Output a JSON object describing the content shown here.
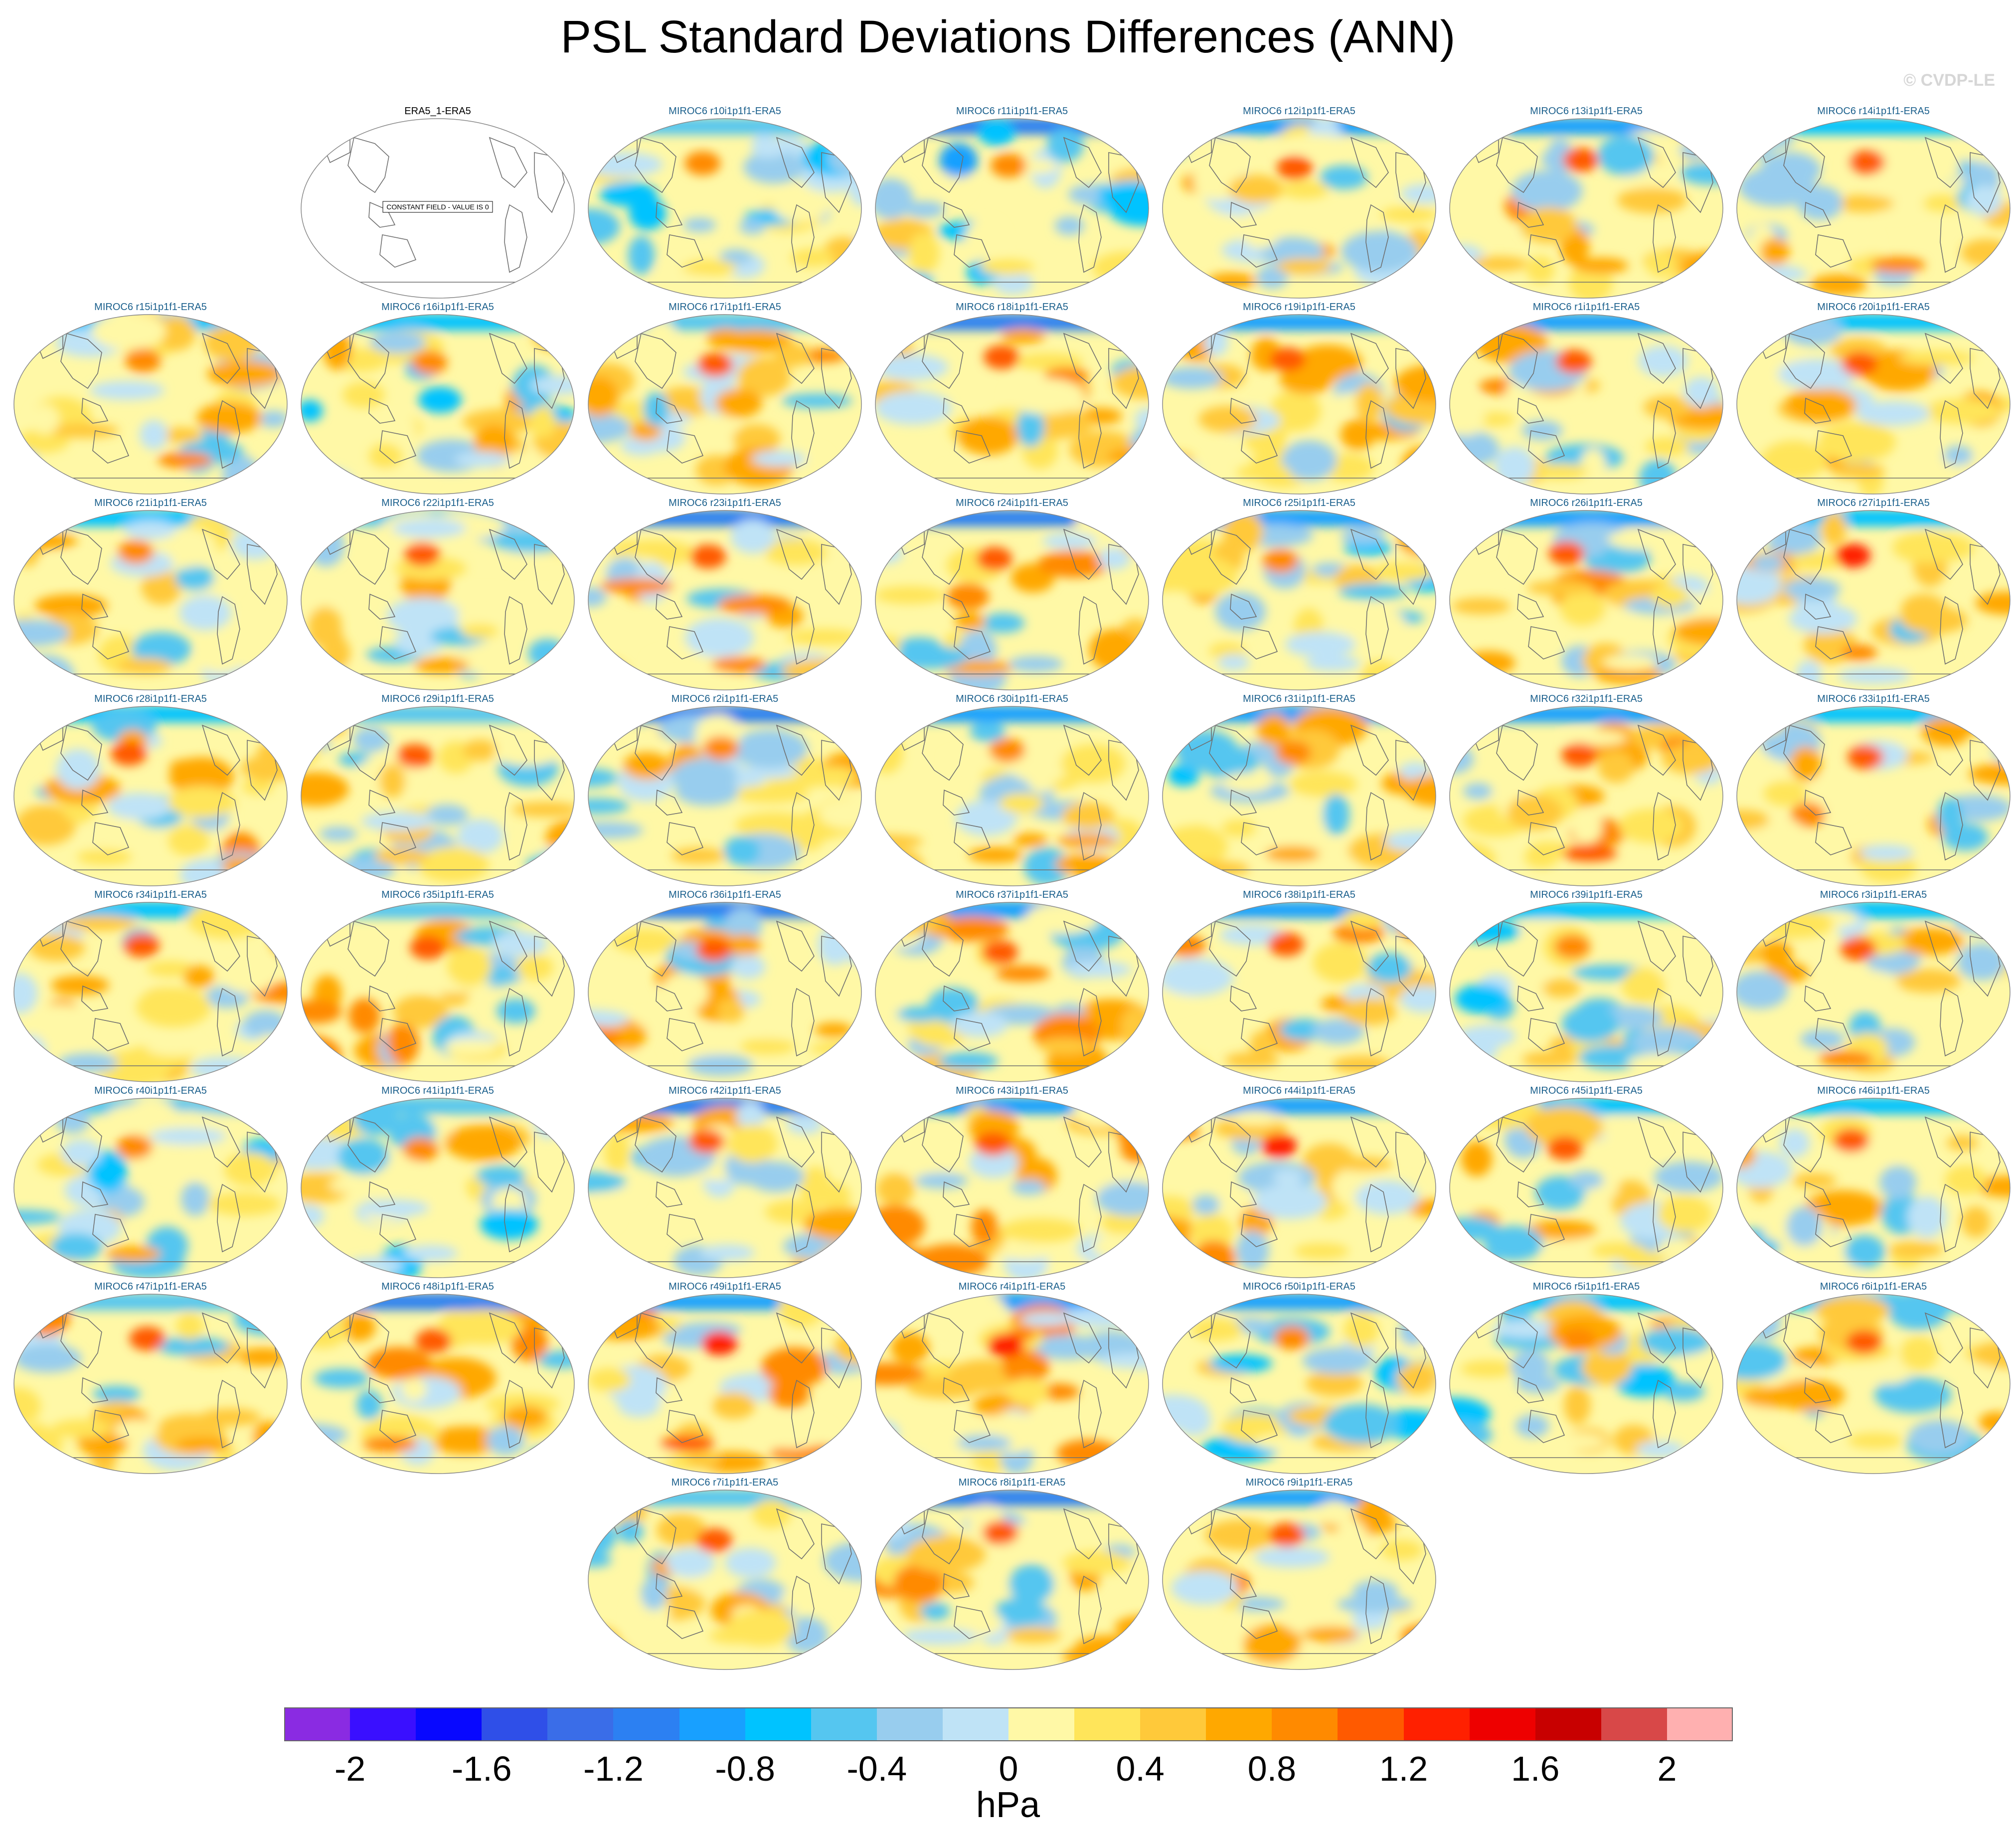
{
  "title": "PSL Standard Deviations Differences (ANN)",
  "credit": "© CVDP-LE",
  "chart_data": {
    "type": "heatmap",
    "title": "PSL Standard Deviations Differences (ANN)",
    "projection": "Robinson global maps, Pacific-centred",
    "units": "hPa",
    "colorbar": {
      "levels": [
        -2.2,
        -2.0,
        -1.8,
        -1.6,
        -1.4,
        -1.2,
        -1.0,
        -0.8,
        -0.6,
        -0.4,
        -0.2,
        0.0,
        0.2,
        0.4,
        0.6,
        0.8,
        1.0,
        1.2,
        1.4,
        1.6,
        1.8,
        2.0,
        2.2
      ],
      "colors": [
        "#8a2be2",
        "#3a0fff",
        "#0808ff",
        "#2f4fe8",
        "#3a6de8",
        "#2c80f2",
        "#18a0ff",
        "#00c3ff",
        "#55c6f0",
        "#98cdee",
        "#bfe3f6",
        "#fff8a6",
        "#ffe55a",
        "#ffc93a",
        "#ffa800",
        "#ff8a00",
        "#ff5a00",
        "#ff2000",
        "#ee0000",
        "#c80000",
        "#d84848",
        "#ffb0b0"
      ],
      "tick_labels": [
        "-2",
        "-1.6",
        "-1.2",
        "-0.8",
        "-0.4",
        "0",
        "0.4",
        "0.8",
        "1.2",
        "1.6",
        "2"
      ],
      "tick_values": [
        -2.0,
        -1.6,
        -1.2,
        -0.8,
        -0.4,
        0.0,
        0.4,
        0.8,
        1.2,
        1.6,
        2.0
      ]
    },
    "panels": [
      {
        "label": "ERA5_1-ERA5",
        "note": "CONSTANT FIELD - VALUE IS 0",
        "tint": 0
      },
      {
        "label": "MIROC6 r10i1p1f1-ERA5",
        "tint": 0.45
      },
      {
        "label": "MIROC6 r11i1p1f1-ERA5",
        "tint": 0.35
      },
      {
        "label": "MIROC6 r12i1p1f1-ERA5",
        "tint": 0.6
      },
      {
        "label": "MIROC6 r13i1p1f1-ERA5",
        "tint": 0.7
      },
      {
        "label": "MIROC6 r14i1p1f1-ERA5",
        "tint": 0.65
      },
      {
        "label": "MIROC6 r15i1p1f1-ERA5",
        "tint": 0.55
      },
      {
        "label": "MIROC6 r16i1p1f1-ERA5",
        "tint": 0.5
      },
      {
        "label": "MIROC6 r17i1p1f1-ERA5",
        "tint": 0.7
      },
      {
        "label": "MIROC6 r18i1p1f1-ERA5",
        "tint": 0.75
      },
      {
        "label": "MIROC6 r19i1p1f1-ERA5",
        "tint": 0.75
      },
      {
        "label": "MIROC6 r1i1p1f1-ERA5",
        "tint": 0.7
      },
      {
        "label": "MIROC6 r20i1p1f1-ERA5",
        "tint": 0.65
      },
      {
        "label": "MIROC6 r21i1p1f1-ERA5",
        "tint": 0.55
      },
      {
        "label": "MIROC6 r22i1p1f1-ERA5",
        "tint": 0.6
      },
      {
        "label": "MIROC6 r23i1p1f1-ERA5",
        "tint": 0.65
      },
      {
        "label": "MIROC6 r24i1p1f1-ERA5",
        "tint": 0.65
      },
      {
        "label": "MIROC6 r25i1p1f1-ERA5",
        "tint": 0.5
      },
      {
        "label": "MIROC6 r26i1p1f1-ERA5",
        "tint": 0.7
      },
      {
        "label": "MIROC6 r27i1p1f1-ERA5",
        "tint": 0.8
      },
      {
        "label": "MIROC6 r28i1p1f1-ERA5",
        "tint": 0.7
      },
      {
        "label": "MIROC6 r29i1p1f1-ERA5",
        "tint": 0.65
      },
      {
        "label": "MIROC6 r2i1p1f1-ERA5",
        "tint": 0.55
      },
      {
        "label": "MIROC6 r30i1p1f1-ERA5",
        "tint": 0.55
      },
      {
        "label": "MIROC6 r31i1p1f1-ERA5",
        "tint": 0.55
      },
      {
        "label": "MIROC6 r32i1p1f1-ERA5",
        "tint": 0.75
      },
      {
        "label": "MIROC6 r33i1p1f1-ERA5",
        "tint": 0.75
      },
      {
        "label": "MIROC6 r34i1p1f1-ERA5",
        "tint": 0.65
      },
      {
        "label": "MIROC6 r35i1p1f1-ERA5",
        "tint": 0.7
      },
      {
        "label": "MIROC6 r36i1p1f1-ERA5",
        "tint": 0.7
      },
      {
        "label": "MIROC6 r37i1p1f1-ERA5",
        "tint": 0.7
      },
      {
        "label": "MIROC6 r38i1p1f1-ERA5",
        "tint": 0.7
      },
      {
        "label": "MIROC6 r39i1p1f1-ERA5",
        "tint": 0.45
      },
      {
        "label": "MIROC6 r3i1p1f1-ERA5",
        "tint": 0.65
      },
      {
        "label": "MIROC6 r40i1p1f1-ERA5",
        "tint": 0.35
      },
      {
        "label": "MIROC6 r41i1p1f1-ERA5",
        "tint": 0.45
      },
      {
        "label": "MIROC6 r42i1p1f1-ERA5",
        "tint": 0.65
      },
      {
        "label": "MIROC6 r43i1p1f1-ERA5",
        "tint": 0.75
      },
      {
        "label": "MIROC6 r44i1p1f1-ERA5",
        "tint": 0.8
      },
      {
        "label": "MIROC6 r45i1p1f1-ERA5",
        "tint": 0.6
      },
      {
        "label": "MIROC6 r46i1p1f1-ERA5",
        "tint": 0.65
      },
      {
        "label": "MIROC6 r47i1p1f1-ERA5",
        "tint": 0.7
      },
      {
        "label": "MIROC6 r48i1p1f1-ERA5",
        "tint": 0.7
      },
      {
        "label": "MIROC6 r49i1p1f1-ERA5",
        "tint": 0.8
      },
      {
        "label": "MIROC6 r4i1p1f1-ERA5",
        "tint": 0.8
      },
      {
        "label": "MIROC6 r50i1p1f1-ERA5",
        "tint": 0.45
      },
      {
        "label": "MIROC6 r5i1p1f1-ERA5",
        "tint": 0.5
      },
      {
        "label": "MIROC6 r6i1p1f1-ERA5",
        "tint": 0.6
      },
      {
        "label": "MIROC6 r7i1p1f1-ERA5",
        "tint": 0.65
      },
      {
        "label": "MIROC6 r8i1p1f1-ERA5",
        "tint": 0.7
      },
      {
        "label": "MIROC6 r9i1p1f1-ERA5",
        "tint": 0.7
      }
    ]
  }
}
